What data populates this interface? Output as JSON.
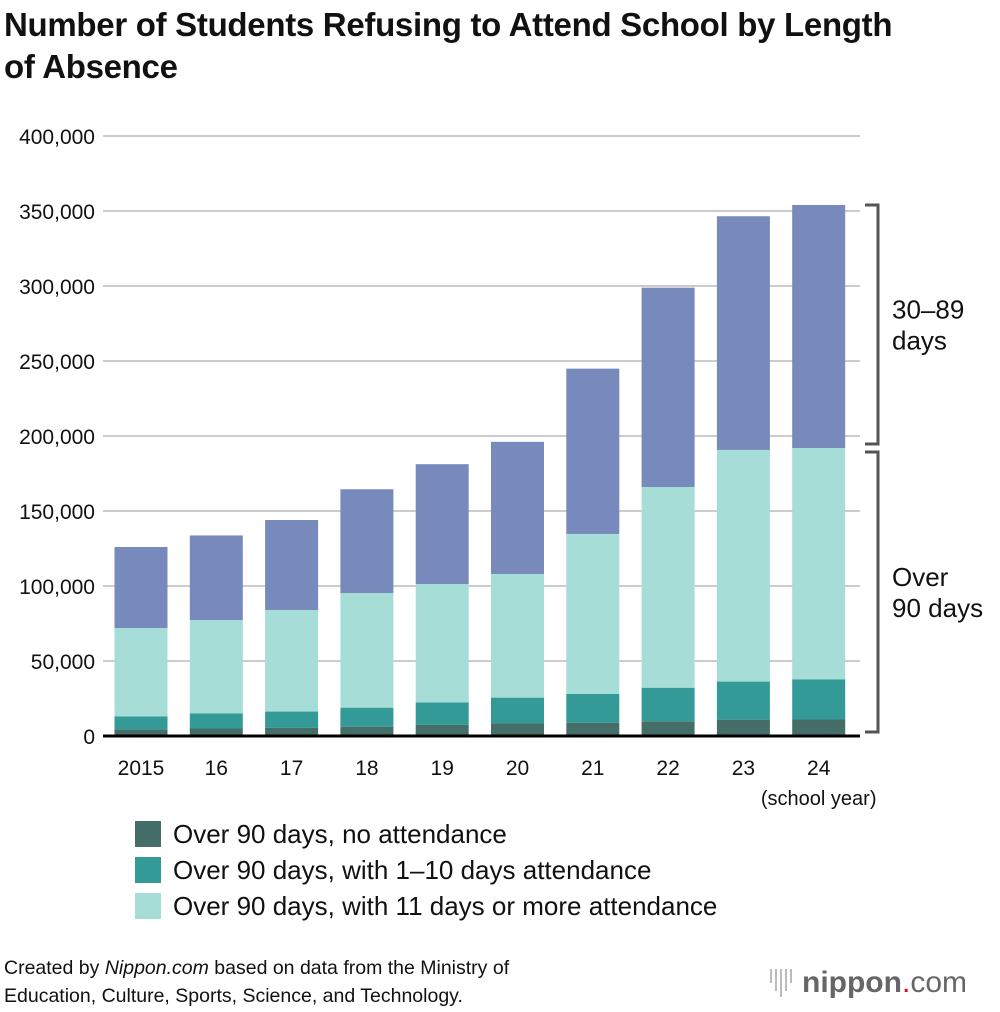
{
  "title": "Number of Students Refusing to Attend School by Length of Absence",
  "chart_data": {
    "type": "bar",
    "stacked": true,
    "title": "Number of Students Refusing to Attend School by Length of Absence",
    "categories": [
      "2015",
      "16",
      "17",
      "18",
      "19",
      "20",
      "21",
      "22",
      "23",
      "24"
    ],
    "xlabel": "(school year)",
    "ylabel": "",
    "ylim": [
      0,
      400000
    ],
    "yticks": [
      "0",
      "50,000",
      "100,000",
      "150,000",
      "200,000",
      "250,000",
      "300,000",
      "350,000",
      "400,000"
    ],
    "ytick_values": [
      0,
      50000,
      100000,
      150000,
      200000,
      250000,
      300000,
      350000,
      400000
    ],
    "grid": true,
    "legend_position": "bottom",
    "series": [
      {
        "name": "Over 90 days, no attendance",
        "color": "#466e68",
        "values": [
          4500,
          5000,
          5400,
          6200,
          7400,
          8300,
          8800,
          9800,
          10900,
          11000
        ]
      },
      {
        "name": "Over 90 days, with 1–10 days attendance",
        "color": "#339a98",
        "values": [
          8600,
          10000,
          10900,
          12700,
          15000,
          17300,
          19200,
          22400,
          25400,
          26800
        ]
      },
      {
        "name": "Over 90 days, with 11 days or more attendance",
        "color": "#a6ded7",
        "values": [
          58900,
          62300,
          67700,
          76400,
          78900,
          82400,
          106700,
          133800,
          154400,
          154200
        ]
      },
      {
        "name": "30–89 days",
        "color": "#7889bb",
        "values": [
          54000,
          56400,
          60000,
          69200,
          79900,
          88100,
          110200,
          132900,
          155800,
          162000
        ]
      }
    ],
    "brackets": [
      {
        "label_lines": [
          "30–89",
          "days"
        ]
      },
      {
        "label_lines": [
          "Over",
          "90 days"
        ]
      }
    ]
  },
  "footer": {
    "line1_prefix": "Created by ",
    "line1_site": "Nippon.com",
    "line1_suffix": " based on data from the Ministry of",
    "line2": "Education, Culture, Sports, Science, and Technology."
  },
  "logo": {
    "text": "nippon",
    "dot": ".",
    "suffix": "com",
    "dot_color": "#e60012"
  }
}
